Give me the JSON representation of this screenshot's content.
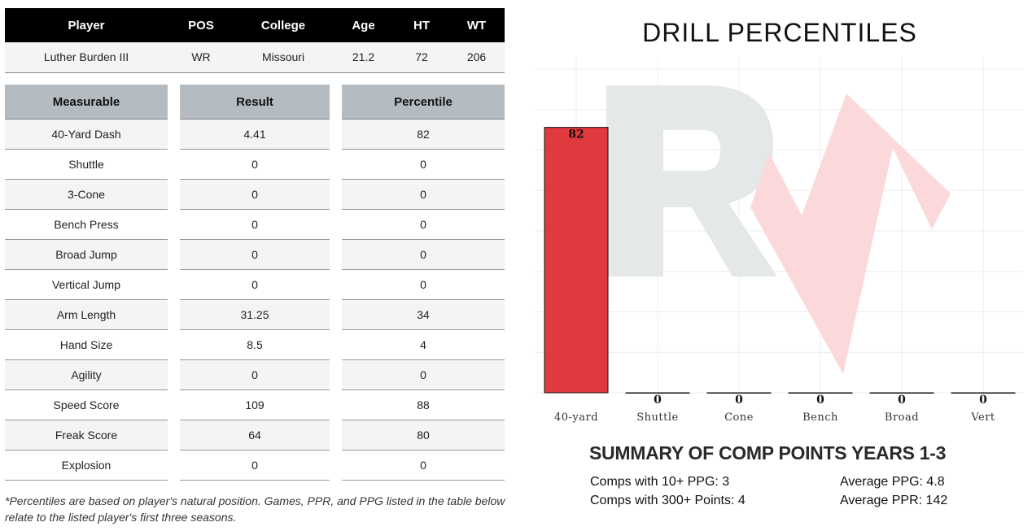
{
  "player_table": {
    "headers": [
      "Player",
      "POS",
      "College",
      "Age",
      "HT",
      "WT"
    ],
    "row": [
      "Luther Burden III",
      "WR",
      "Missouri",
      "21.2",
      "72",
      "206"
    ]
  },
  "measurables": {
    "headers": [
      "Measurable",
      "Result",
      "Percentile"
    ],
    "rows": [
      [
        "40-Yard Dash",
        "4.41",
        "82"
      ],
      [
        "Shuttle",
        "0",
        "0"
      ],
      [
        "3-Cone",
        "0",
        "0"
      ],
      [
        "Bench Press",
        "0",
        "0"
      ],
      [
        "Broad Jump",
        "0",
        "0"
      ],
      [
        "Vertical Jump",
        "0",
        "0"
      ],
      [
        "Arm Length",
        "31.25",
        "34"
      ],
      [
        "Hand Size",
        "8.5",
        "4"
      ],
      [
        "Agility",
        "0",
        "0"
      ],
      [
        "Speed Score",
        "109",
        "88"
      ],
      [
        "Freak Score",
        "64",
        "80"
      ],
      [
        "Explosion",
        "0",
        "0"
      ]
    ]
  },
  "footnote": {
    "line1": "*Percentiles are based on player's natural position. Games, PPR, and PPG listed in the table below",
    "line2": "relate to the listed player's first three seasons."
  },
  "chart_data": {
    "type": "bar",
    "title": "DRILL PERCENTILES",
    "categories": [
      "40-yard",
      "Shuttle",
      "Cone",
      "Bench",
      "Broad",
      "Vert"
    ],
    "values": [
      82,
      0,
      0,
      0,
      0,
      0
    ],
    "ylim": [
      0,
      100
    ],
    "grid": true,
    "bar_color": "#dc1e23",
    "xlabel": "",
    "ylabel": ""
  },
  "summary": {
    "title": "SUMMARY OF COMP POINTS YEARS 1-3",
    "comps_10_ppg": "Comps with 10+ PPG: 3",
    "comps_300_points": "Comps with 300+ Points: 4",
    "avg_ppg": "Average PPG: 4.8",
    "avg_ppr": "Average PPR: 142"
  },
  "colors": {
    "header_black": "#000000",
    "subheader_gray": "#b4bcc2",
    "watermark_gray": "#e5e8e8",
    "watermark_red": "#fbd9da"
  }
}
